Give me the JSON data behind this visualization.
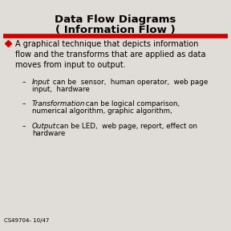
{
  "title_line1": "Data Flow Diagrams",
  "title_line2": "( Information Flow )",
  "bg_color": "#e0ddd8",
  "red_line_color": "#cc0000",
  "bullet_color": "#cc0000",
  "footer": "CS49704- 10/47",
  "title_fontsize": 9.5,
  "body_fontsize": 7.0,
  "sub_fontsize": 6.3,
  "footer_fontsize": 5.0,
  "bullet_main": "A graphical technique that depicts information\nflow and the transforms that are applied as data\nmoves from input to output.",
  "sub_items": [
    {
      "label": "Input",
      "rest_line1": "can be  sensor,  human operator,  web page",
      "rest_line2": "input,  hardware"
    },
    {
      "label": "Transformation",
      "rest_line1": "can be logical comparison,",
      "rest_line2": "numerical algorithm, graphic algorithm,"
    },
    {
      "label": "Output",
      "rest_line1": "can be LED,  web page, report, effect on",
      "rest_line2": "hardware"
    }
  ]
}
